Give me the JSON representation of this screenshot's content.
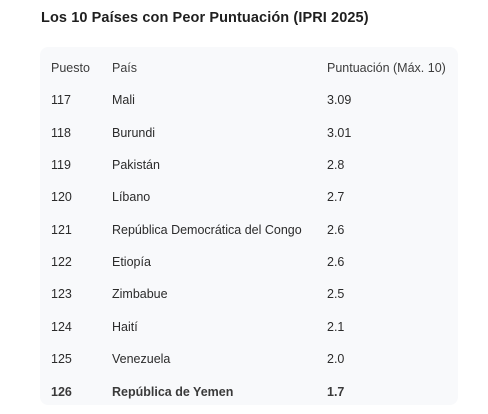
{
  "title": "Los 10 Países con Peor Puntuación (IPRI 2025)",
  "table": {
    "headers": [
      "Puesto",
      "País",
      "Puntuación (Máx. 10)"
    ],
    "rows": [
      [
        "117",
        "Mali",
        "3.09"
      ],
      [
        "118",
        "Burundi",
        "3.01"
      ],
      [
        "119",
        "Pakistán",
        "2.8"
      ],
      [
        "120",
        "Líbano",
        "2.7"
      ],
      [
        "121",
        "República Democrática del Congo",
        "2.6"
      ],
      [
        "122",
        "Etiopía",
        "2.6"
      ],
      [
        "123",
        "Zimbabue",
        "2.5"
      ],
      [
        "124",
        "Haití",
        "2.1"
      ],
      [
        "125",
        "Venezuela",
        "2.0"
      ],
      [
        "126",
        "República de Yemen",
        "1.7"
      ]
    ]
  }
}
